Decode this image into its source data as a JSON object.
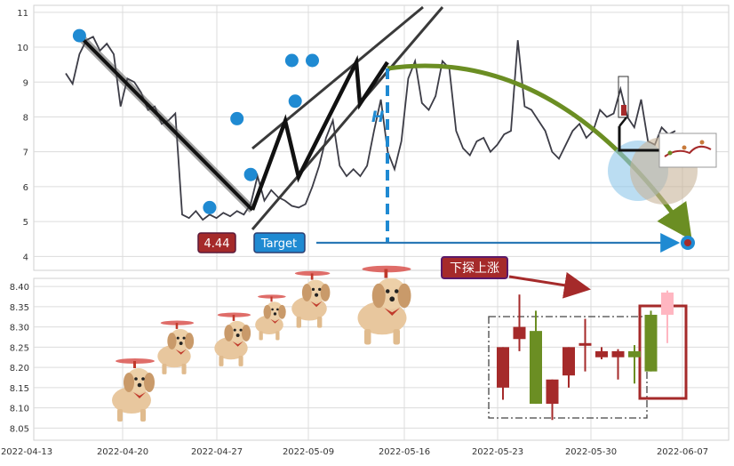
{
  "chart_data": [
    {
      "type": "line",
      "panel": "price",
      "x_ticks": [
        "2022-04-13",
        "2022-04-20",
        "2022-04-27",
        "2022-05-09",
        "2022-05-16",
        "2022-05-23",
        "2022-05-30",
        "2022-06-07"
      ],
      "ylim": [
        3.6,
        11.2
      ],
      "y_ticks": [
        4,
        5,
        6,
        7,
        8,
        9,
        10,
        11
      ],
      "grid": true,
      "series": [
        {
          "points": [
            [
              0,
              9.25
            ],
            [
              1,
              8.95
            ],
            [
              2,
              9.8
            ],
            [
              3,
              10.2
            ],
            [
              4,
              10.3
            ],
            [
              5,
              9.9
            ],
            [
              6,
              10.1
            ],
            [
              7,
              9.8
            ],
            [
              8,
              8.3
            ],
            [
              9,
              9.1
            ],
            [
              10,
              9.0
            ],
            [
              11,
              8.7
            ],
            [
              12,
              8.2
            ],
            [
              13,
              8.3
            ],
            [
              14,
              7.8
            ],
            [
              15,
              7.9
            ],
            [
              16,
              8.1
            ],
            [
              17,
              5.2
            ],
            [
              18,
              5.1
            ],
            [
              19,
              5.3
            ],
            [
              20,
              5.05
            ],
            [
              21,
              5.2
            ],
            [
              22,
              5.1
            ],
            [
              23,
              5.25
            ],
            [
              24,
              5.15
            ],
            [
              25,
              5.3
            ],
            [
              26,
              5.2
            ],
            [
              27,
              5.5
            ],
            [
              28,
              6.3
            ],
            [
              29,
              5.6
            ],
            [
              30,
              5.9
            ],
            [
              31,
              5.7
            ],
            [
              32,
              5.6
            ],
            [
              33,
              5.45
            ],
            [
              34,
              5.4
            ],
            [
              35,
              5.5
            ],
            [
              36,
              6.0
            ],
            [
              37,
              6.6
            ],
            [
              38,
              7.4
            ],
            [
              39,
              7.9
            ],
            [
              40,
              6.6
            ],
            [
              41,
              6.3
            ],
            [
              42,
              6.5
            ],
            [
              43,
              6.3
            ],
            [
              44,
              6.6
            ],
            [
              45,
              7.6
            ],
            [
              46,
              8.5
            ],
            [
              47,
              7.0
            ],
            [
              48,
              6.5
            ],
            [
              49,
              7.3
            ],
            [
              50,
              9.1
            ],
            [
              51,
              9.6
            ],
            [
              52,
              8.4
            ],
            [
              53,
              8.2
            ],
            [
              54,
              8.6
            ],
            [
              55,
              9.6
            ],
            [
              56,
              9.4
            ],
            [
              57,
              7.6
            ],
            [
              58,
              7.1
            ],
            [
              59,
              6.9
            ],
            [
              60,
              7.3
            ],
            [
              61,
              7.4
            ],
            [
              62,
              7.0
            ],
            [
              63,
              7.2
            ],
            [
              64,
              7.5
            ],
            [
              65,
              7.6
            ],
            [
              66,
              10.2
            ],
            [
              67,
              8.3
            ],
            [
              68,
              8.2
            ],
            [
              69,
              7.9
            ],
            [
              70,
              7.6
            ],
            [
              71,
              7.0
            ],
            [
              72,
              6.8
            ],
            [
              73,
              7.2
            ],
            [
              74,
              7.6
            ],
            [
              75,
              7.8
            ],
            [
              76,
              7.4
            ],
            [
              77,
              7.6
            ],
            [
              78,
              8.2
            ],
            [
              79,
              8.0
            ],
            [
              80,
              8.1
            ],
            [
              81,
              8.8
            ],
            [
              82,
              8.0
            ],
            [
              83,
              7.7
            ],
            [
              84,
              8.5
            ],
            [
              85,
              7.3
            ],
            [
              86,
              7.2
            ],
            [
              87,
              7.7
            ],
            [
              88,
              7.5
            ],
            [
              89,
              7.6
            ]
          ]
        }
      ],
      "swing_points": [
        [
          2,
          10.33
        ],
        [
          21,
          5.4
        ],
        [
          25,
          7.95
        ],
        [
          27,
          6.35
        ],
        [
          33,
          9.62
        ],
        [
          33.5,
          8.45
        ],
        [
          36,
          9.62
        ]
      ],
      "annotations": {
        "price_label": "4.44",
        "target_label": "Target",
        "h_label": "H"
      },
      "colors": {
        "line": "#3c3c46",
        "marker": "#1f8ad2",
        "arrow": "#6b8e23",
        "label_bg": "#a52a2a",
        "target_bg": "#1f8ad2"
      }
    },
    {
      "type": "candlestick",
      "panel": "candles",
      "ylim": [
        8.02,
        8.42
      ],
      "y_ticks": [
        8.05,
        8.1,
        8.15,
        8.2,
        8.25,
        8.3,
        8.35,
        8.4
      ],
      "grid": true,
      "candles": [
        {
          "open": 8.25,
          "close": 8.15,
          "high": 8.25,
          "low": 8.12
        },
        {
          "open": 8.3,
          "close": 8.27,
          "high": 8.38,
          "low": 8.24
        },
        {
          "open": 8.11,
          "close": 8.29,
          "high": 8.34,
          "low": 8.11
        },
        {
          "open": 8.17,
          "close": 8.11,
          "high": 8.17,
          "low": 8.07
        },
        {
          "open": 8.25,
          "close": 8.18,
          "high": 8.25,
          "low": 8.15
        },
        {
          "open": 8.26,
          "close": 8.255,
          "high": 8.32,
          "low": 8.19
        },
        {
          "open": 8.24,
          "close": 8.225,
          "high": 8.25,
          "low": 8.22
        },
        {
          "open": 8.24,
          "close": 8.225,
          "high": 8.245,
          "low": 8.17
        },
        {
          "open": 8.225,
          "close": 8.24,
          "high": 8.255,
          "low": 8.16
        },
        {
          "open": 8.19,
          "close": 8.33,
          "high": 8.34,
          "low": 8.19
        },
        {
          "open": 8.385,
          "close": 8.33,
          "high": 8.39,
          "low": 8.26
        }
      ],
      "annotations": {
        "banner": "下探上涨"
      },
      "colors": {
        "up": "#a52a2a",
        "down": "#6b8e23",
        "last": "#ffb6c1",
        "box": "#a52a2a"
      }
    }
  ]
}
